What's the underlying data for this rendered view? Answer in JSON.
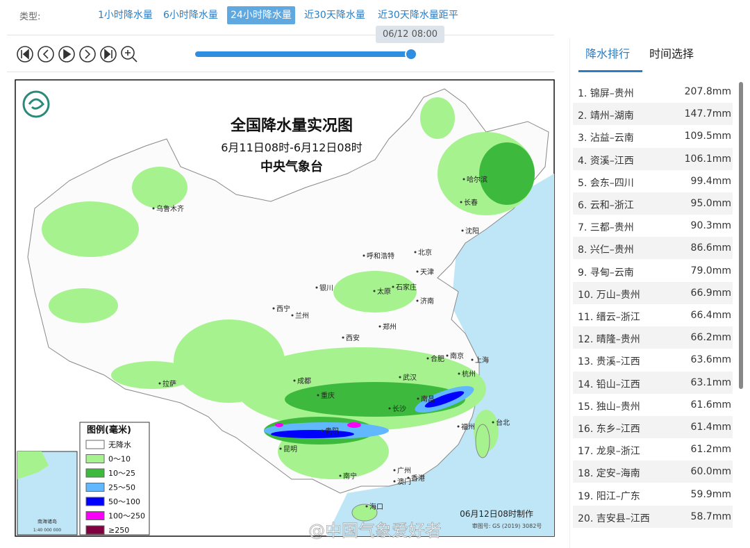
{
  "header": {
    "type_label": "类型:",
    "tabs": [
      "1小时降水量",
      "6小时降水量",
      "24小时降水量",
      "近30天降水量",
      "近30天降水量距平"
    ],
    "active_tab": 2
  },
  "timeline": {
    "time_label": "06/12 08:00"
  },
  "map": {
    "title": "全国降水量实况图",
    "subtitle": "6月11日08时-6月12日08时",
    "issuer": "中央气象台",
    "legend_title": "图例(毫米)",
    "legend": [
      {
        "label": "无降水",
        "color": "#ffffff"
      },
      {
        "label": "0～10",
        "color": "#a6f28f"
      },
      {
        "label": "10～25",
        "color": "#3dba3d"
      },
      {
        "label": "25～50",
        "color": "#61b8ff"
      },
      {
        "label": "50～100",
        "color": "#0000ff"
      },
      {
        "label": "100～250",
        "color": "#fa00fa"
      },
      {
        "label": "≥250",
        "color": "#800040"
      }
    ],
    "cities": [
      "乌鲁木齐",
      "哈尔滨",
      "长春",
      "沈阳",
      "北京",
      "天津",
      "呼和浩特",
      "银川",
      "太原",
      "石家庄",
      "济南",
      "西宁",
      "兰州",
      "郑州",
      "西安",
      "合肥",
      "南京",
      "上海",
      "拉萨",
      "成都",
      "武汉",
      "杭州",
      "重庆",
      "长沙",
      "南昌",
      "贵阳",
      "福州",
      "台北",
      "昆明",
      "广州",
      "南宁",
      "澳门",
      "香港",
      "海口"
    ],
    "inset_label": "南海诸岛",
    "inset_scale": "1:40 000 000",
    "made_time": "06月12日08时制作",
    "approval": "审图号: GS (2019) 3082号",
    "watermark": "@中国气象爱好者"
  },
  "ranking": {
    "tabs": [
      "降水排行",
      "时间选择"
    ],
    "active_tab": 0,
    "rows": [
      {
        "station": "1. 锦屏–贵州",
        "amount": "207.8mm"
      },
      {
        "station": "2. 靖州–湖南",
        "amount": "147.7mm"
      },
      {
        "station": "3. 沾益–云南",
        "amount": "109.5mm"
      },
      {
        "station": "4. 资溪–江西",
        "amount": "106.1mm"
      },
      {
        "station": "5. 会东–四川",
        "amount": "99.4mm"
      },
      {
        "station": "6. 云和–浙江",
        "amount": "95.0mm"
      },
      {
        "station": "7. 三都–贵州",
        "amount": "90.3mm"
      },
      {
        "station": "8. 兴仁–贵州",
        "amount": "86.6mm"
      },
      {
        "station": "9. 寻甸–云南",
        "amount": "79.0mm"
      },
      {
        "station": "10. 万山–贵州",
        "amount": "66.9mm"
      },
      {
        "station": "11. 缙云–浙江",
        "amount": "66.4mm"
      },
      {
        "station": "12. 晴隆–贵州",
        "amount": "66.2mm"
      },
      {
        "station": "13. 贵溪–江西",
        "amount": "63.6mm"
      },
      {
        "station": "14. 铅山–江西",
        "amount": "63.1mm"
      },
      {
        "station": "15. 独山–贵州",
        "amount": "61.6mm"
      },
      {
        "station": "16. 东乡–江西",
        "amount": "61.4mm"
      },
      {
        "station": "17. 龙泉–浙江",
        "amount": "61.2mm"
      },
      {
        "station": "18. 定安–海南",
        "amount": "60.0mm"
      },
      {
        "station": "19. 阳江–广东",
        "amount": "59.9mm"
      },
      {
        "station": "20. 吉安县–江西",
        "amount": "58.7mm"
      }
    ]
  }
}
